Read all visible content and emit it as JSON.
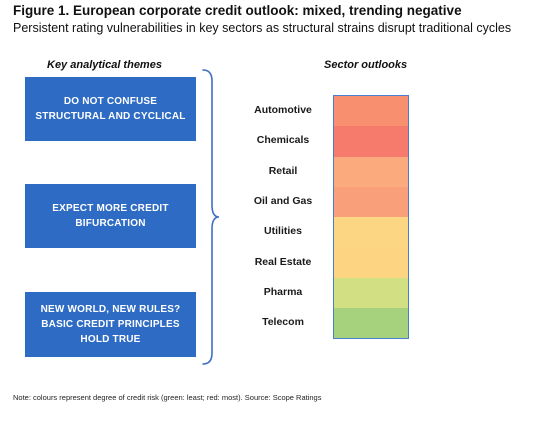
{
  "figure": {
    "title": "Figure 1. European corporate credit outlook: mixed, trending negative",
    "subtitle": "Persistent rating vulnerabilities in key sectors as structural strains disrupt traditional cycles"
  },
  "themes": {
    "heading": "Key analytical themes",
    "items": [
      {
        "text": "DO NOT CONFUSE\nSTRUCTURAL AND CYCLICAL"
      },
      {
        "text": "EXPECT MORE CREDIT\nBIFURCATION"
      },
      {
        "text": "NEW WORLD, NEW RULES?\nBASIC CREDIT PRINCIPLES\nHOLD TRUE"
      }
    ]
  },
  "sectors": {
    "heading": "Sector outlooks",
    "items": [
      {
        "label": "Automotive",
        "color": "#f8906f"
      },
      {
        "label": "Chemicals",
        "color": "#f77b6c"
      },
      {
        "label": "Retail",
        "color": "#fbaa7e"
      },
      {
        "label": "Oil and Gas",
        "color": "#f9a07a"
      },
      {
        "label": "Utilities",
        "color": "#fdd683"
      },
      {
        "label": "Real Estate",
        "color": "#fcd482"
      },
      {
        "label": "Pharma",
        "color": "#d2df83"
      },
      {
        "label": "Telecom",
        "color": "#a6d27e"
      }
    ]
  },
  "note": "Note: colours represent degree of credit risk (green: least; red: most). Source: Scope Ratings",
  "colors": {
    "theme_box": "#2e6bc4",
    "brace": "#3f6fc2",
    "heat_border": "#4a7fd0"
  }
}
